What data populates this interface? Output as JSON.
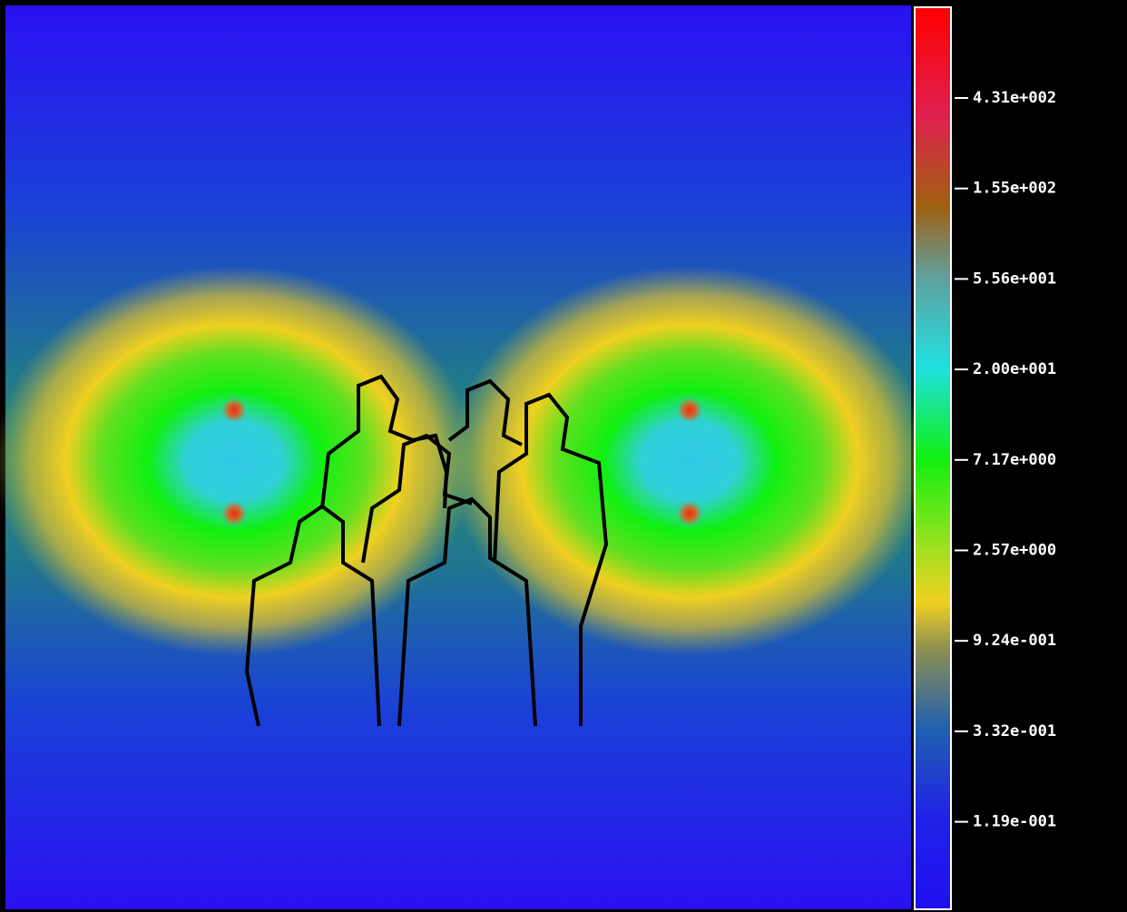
{
  "colorbar": {
    "ticks": [
      "4.31e+002",
      "1.55e+002",
      "5.56e+001",
      "2.00e+001",
      "7.17e+000",
      "2.57e+000",
      "9.24e-001",
      "3.32e-001",
      "1.19e-001"
    ]
  }
}
